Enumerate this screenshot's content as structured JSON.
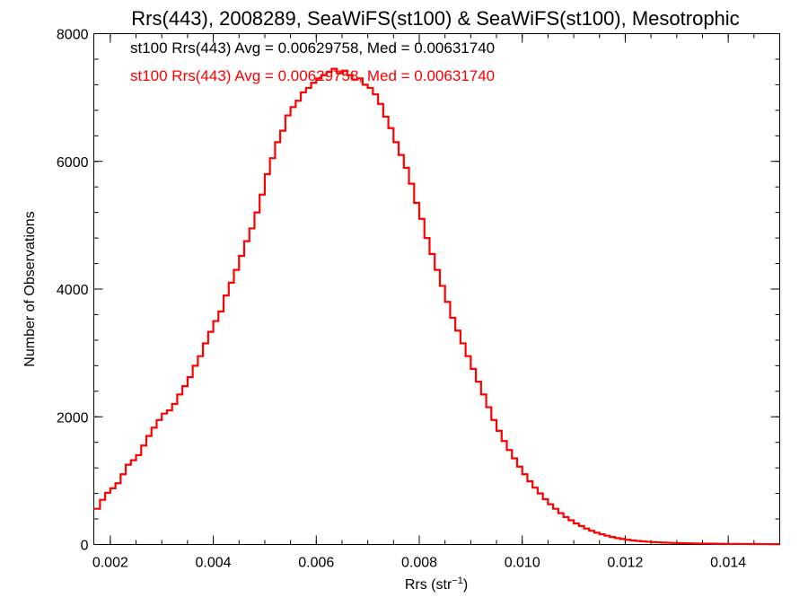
{
  "chart_data": {
    "type": "histogram",
    "title": "Rrs(443), 2008289, SeaWiFS(st100) & SeaWiFS(st100), Mesotrophic",
    "xlabel": {
      "base": "Rrs (str",
      "sup": "−1",
      "end": ")"
    },
    "ylabel": "Number of Observations",
    "xlim": [
      0.00168,
      0.015
    ],
    "ylim": [
      0,
      8000
    ],
    "x_ticks": [
      {
        "value": 0.002,
        "label": "0.002"
      },
      {
        "value": 0.004,
        "label": "0.004"
      },
      {
        "value": 0.006,
        "label": "0.006"
      },
      {
        "value": 0.008,
        "label": "0.008"
      },
      {
        "value": 0.01,
        "label": "0.010"
      },
      {
        "value": 0.012,
        "label": "0.012"
      },
      {
        "value": 0.014,
        "label": "0.014"
      }
    ],
    "x_minor_step": 0.0005,
    "y_ticks": [
      {
        "value": 0,
        "label": "0"
      },
      {
        "value": 2000,
        "label": "2000"
      },
      {
        "value": 4000,
        "label": "4000"
      },
      {
        "value": 6000,
        "label": "6000"
      },
      {
        "value": 8000,
        "label": "8000"
      }
    ],
    "y_minor_step": 400,
    "grid": false,
    "annotations": [
      {
        "text": "st100 Rrs(443) Avg = 0.00629758, Med = 0.00631740",
        "color": "#000000"
      },
      {
        "text": "st100 Rrs(443) Avg = 0.00629758, Med = 0.00631740",
        "color": "#ff0000"
      }
    ],
    "series": [
      {
        "color": "#ff0000",
        "style": "step",
        "points": [
          [
            0.00168,
            560
          ],
          [
            0.0018,
            700
          ],
          [
            0.0019,
            810
          ],
          [
            0.002,
            880
          ],
          [
            0.0021,
            960
          ],
          [
            0.0022,
            1100
          ],
          [
            0.0023,
            1250
          ],
          [
            0.0024,
            1320
          ],
          [
            0.0025,
            1400
          ],
          [
            0.0026,
            1550
          ],
          [
            0.0027,
            1700
          ],
          [
            0.0028,
            1830
          ],
          [
            0.0029,
            1950
          ],
          [
            0.003,
            2050
          ],
          [
            0.0031,
            2100
          ],
          [
            0.0032,
            2200
          ],
          [
            0.0033,
            2350
          ],
          [
            0.0034,
            2480
          ],
          [
            0.0035,
            2620
          ],
          [
            0.0036,
            2800
          ],
          [
            0.0037,
            2950
          ],
          [
            0.0038,
            3150
          ],
          [
            0.0039,
            3330
          ],
          [
            0.004,
            3500
          ],
          [
            0.0041,
            3650
          ],
          [
            0.0042,
            3900
          ],
          [
            0.0043,
            4100
          ],
          [
            0.0044,
            4300
          ],
          [
            0.0045,
            4520
          ],
          [
            0.0046,
            4750
          ],
          [
            0.0047,
            4950
          ],
          [
            0.0048,
            5200
          ],
          [
            0.0049,
            5480
          ],
          [
            0.005,
            5800
          ],
          [
            0.0051,
            6050
          ],
          [
            0.0052,
            6300
          ],
          [
            0.0053,
            6480
          ],
          [
            0.0054,
            6720
          ],
          [
            0.0055,
            6850
          ],
          [
            0.0056,
            6950
          ],
          [
            0.0057,
            7080
          ],
          [
            0.0058,
            7150
          ],
          [
            0.0059,
            7230
          ],
          [
            0.006,
            7300
          ],
          [
            0.0061,
            7350
          ],
          [
            0.0062,
            7400
          ],
          [
            0.0063,
            7450
          ],
          [
            0.0064,
            7380
          ],
          [
            0.0065,
            7420
          ],
          [
            0.0066,
            7350
          ],
          [
            0.0067,
            7280
          ],
          [
            0.0068,
            7300
          ],
          [
            0.0069,
            7200
          ],
          [
            0.007,
            7150
          ],
          [
            0.0071,
            7050
          ],
          [
            0.0072,
            6900
          ],
          [
            0.0073,
            6700
          ],
          [
            0.0074,
            6520
          ],
          [
            0.0075,
            6300
          ],
          [
            0.0076,
            6100
          ],
          [
            0.0077,
            5900
          ],
          [
            0.0078,
            5650
          ],
          [
            0.0079,
            5350
          ],
          [
            0.008,
            5100
          ],
          [
            0.0081,
            4800
          ],
          [
            0.0082,
            4550
          ],
          [
            0.0083,
            4300
          ],
          [
            0.0084,
            4050
          ],
          [
            0.0085,
            3800
          ],
          [
            0.0086,
            3550
          ],
          [
            0.0087,
            3350
          ],
          [
            0.0088,
            3150
          ],
          [
            0.0089,
            2950
          ],
          [
            0.009,
            2750
          ],
          [
            0.0091,
            2550
          ],
          [
            0.0092,
            2350
          ],
          [
            0.0093,
            2150
          ],
          [
            0.0094,
            1950
          ],
          [
            0.0095,
            1780
          ],
          [
            0.0096,
            1620
          ],
          [
            0.0097,
            1480
          ],
          [
            0.0098,
            1350
          ],
          [
            0.0099,
            1220
          ],
          [
            0.01,
            1100
          ],
          [
            0.0101,
            990
          ],
          [
            0.0102,
            890
          ],
          [
            0.0103,
            800
          ],
          [
            0.0104,
            710
          ],
          [
            0.0105,
            630
          ],
          [
            0.0106,
            560
          ],
          [
            0.0107,
            490
          ],
          [
            0.0108,
            430
          ],
          [
            0.0109,
            380
          ],
          [
            0.011,
            330
          ],
          [
            0.0111,
            290
          ],
          [
            0.0112,
            250
          ],
          [
            0.0113,
            215
          ],
          [
            0.0114,
            185
          ],
          [
            0.0115,
            160
          ],
          [
            0.0116,
            138
          ],
          [
            0.0117,
            118
          ],
          [
            0.0118,
            100
          ],
          [
            0.0119,
            86
          ],
          [
            0.012,
            74
          ],
          [
            0.0121,
            64
          ],
          [
            0.0122,
            56
          ],
          [
            0.0123,
            49
          ],
          [
            0.0124,
            43
          ],
          [
            0.0125,
            38
          ],
          [
            0.0126,
            34
          ],
          [
            0.0127,
            30
          ],
          [
            0.0128,
            27
          ],
          [
            0.0129,
            24
          ],
          [
            0.013,
            22
          ],
          [
            0.0131,
            20
          ],
          [
            0.0132,
            18
          ],
          [
            0.0133,
            16
          ],
          [
            0.0134,
            15
          ],
          [
            0.0135,
            14
          ],
          [
            0.0136,
            13
          ],
          [
            0.0137,
            12
          ],
          [
            0.0138,
            11
          ],
          [
            0.0139,
            10
          ],
          [
            0.014,
            9
          ],
          [
            0.0141,
            9
          ],
          [
            0.0142,
            8
          ],
          [
            0.0143,
            8
          ],
          [
            0.0144,
            7
          ],
          [
            0.0145,
            7
          ],
          [
            0.0146,
            6
          ],
          [
            0.0147,
            6
          ],
          [
            0.0148,
            5
          ],
          [
            0.0149,
            5
          ],
          [
            0.015,
            5
          ]
        ]
      }
    ]
  }
}
